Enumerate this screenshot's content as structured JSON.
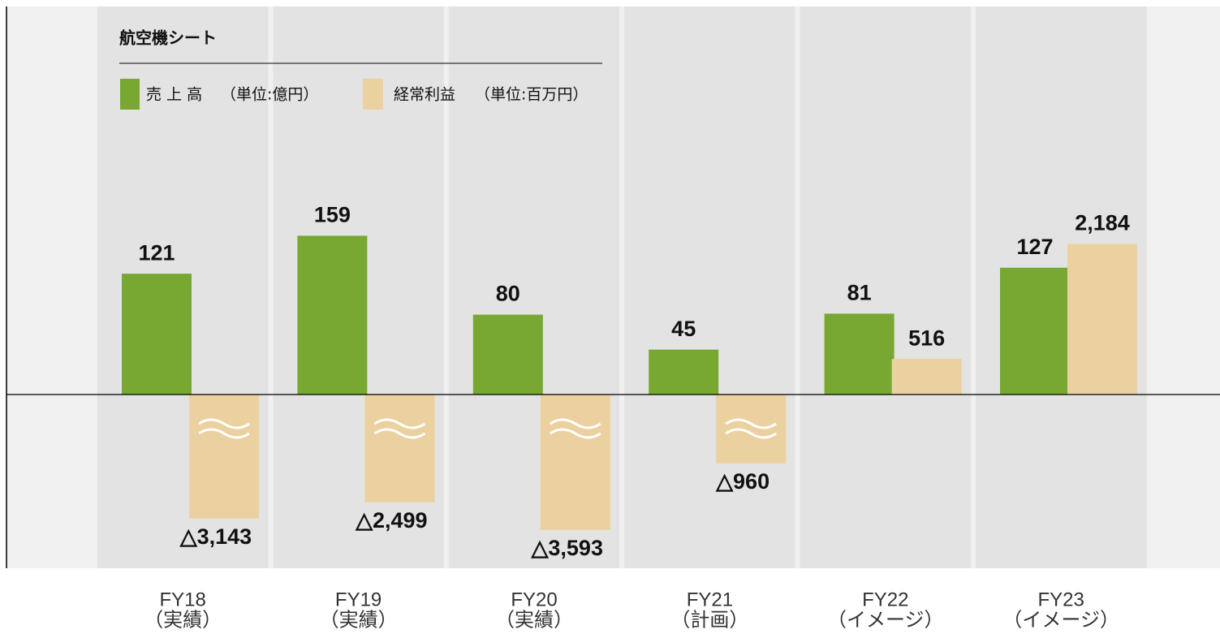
{
  "chart_data": {
    "type": "bar",
    "title": "航空機シート",
    "categories": [
      "FY18",
      "FY19",
      "FY20",
      "FY21",
      "FY22",
      "FY23"
    ],
    "category_notes": [
      "（実績）",
      "（実績）",
      "（実績）",
      "（計画）",
      "（イメージ）",
      "（イメージ）"
    ],
    "series": [
      {
        "name": "売 上 高",
        "unit": "（単位:億円）",
        "color": "#78a832",
        "values": [
          121,
          159,
          80,
          45,
          81,
          127
        ]
      },
      {
        "name": "経常利益",
        "unit": "（単位:百万円）",
        "color": "#ebd1a0",
        "values": [
          -3143,
          -2499,
          -3593,
          -960,
          516,
          2184
        ],
        "value_labels": [
          "△3,143",
          "△2,499",
          "△3,593",
          "△960",
          "516",
          "2,184"
        ]
      }
    ]
  }
}
